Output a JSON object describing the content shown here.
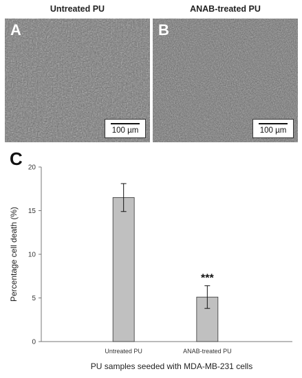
{
  "panels": [
    {
      "title": "Untreated PU",
      "letter": "A",
      "scale_label": "100 µm"
    },
    {
      "title": "ANAB-treated PU",
      "letter": "B",
      "scale_label": "100 µm"
    }
  ],
  "chart_letter": "C",
  "chart_data": {
    "type": "bar",
    "categories": [
      "Untreated PU",
      "ANAB-treated PU"
    ],
    "values": [
      16.5,
      5.1
    ],
    "error": [
      1.6,
      1.3
    ],
    "annotations": [
      {
        "category": "ANAB-treated PU",
        "text": "***"
      }
    ],
    "title": "",
    "xlabel": "PU samples seeded with MDA-MB-231 cells",
    "ylabel": "Percentage cell death (%)",
    "ylim": [
      0,
      20
    ],
    "yticks": [
      0,
      5,
      10,
      15,
      20
    ],
    "bar_color": "#c0c0c0",
    "grid": false
  }
}
